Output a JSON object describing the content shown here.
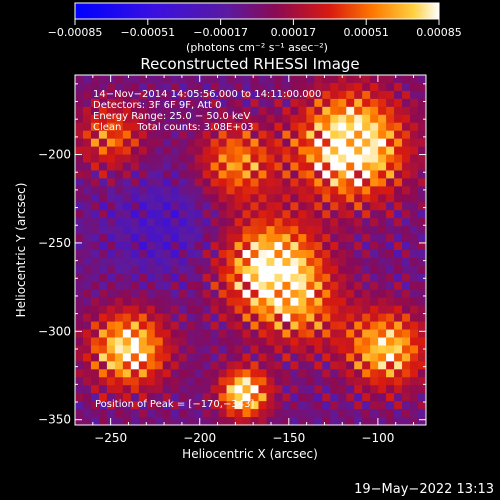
{
  "chart_data": {
    "type": "heatmap",
    "title": "Reconstructed RHESSI Image",
    "xlabel": "Heliocentric X (arcsec)",
    "ylabel": "Heliocentric Y (arcsec)",
    "xlim": [
      -270,
      -73
    ],
    "ylim": [
      -353,
      -155
    ],
    "xticks": [
      -250,
      -200,
      -150,
      -100
    ],
    "xtick_labels": [
      "−250",
      "−200",
      "−150",
      "−100"
    ],
    "yticks": [
      -200,
      -250,
      -300,
      -350
    ],
    "ytick_labels": [
      "−200",
      "−250",
      "−300",
      "−350"
    ],
    "colorbar": {
      "range": [
        -0.00085,
        0.00085
      ],
      "ticks": [
        -0.00085,
        -0.00051,
        -0.00017,
        0.00017,
        0.00051,
        0.00085
      ],
      "tick_labels": [
        "−0.00085",
        "−0.00051",
        "−0.00017",
        "0.00017",
        "0.00051",
        "0.00085"
      ],
      "unit_label": "(photons cm⁻² s⁻¹ asec⁻²)"
    },
    "annotations": {
      "line1": "14−Nov−2014 14:05:56.000 to 14:11:00.000",
      "line2": "Detectors: 3F 6F 9F, Att 0",
      "line3": "Energy Range: 25.0 − 50.0 keV",
      "line4": "Clean     Total counts: 3.08E+03",
      "peak": "Position of Peak = [−170,−343]"
    },
    "footer": "19−May−2022 13:13",
    "peak_position": [
      -170,
      -343
    ],
    "grid": false
  }
}
